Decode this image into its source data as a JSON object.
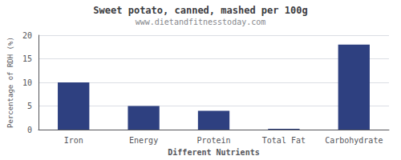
{
  "chart_data": {
    "type": "bar",
    "title": "Sweet potato, canned, mashed per 100g",
    "subtitle": "www.dietandfitnesstoday.com",
    "xlabel": "Different Nutrients",
    "ylabel": "Percentage of RDH (%)",
    "categories": [
      "Iron",
      "Energy",
      "Protein",
      "Total Fat",
      "Carbohydrate"
    ],
    "values": [
      10,
      5,
      4,
      0.2,
      18
    ],
    "color": "#2e4080",
    "ylim": [
      0,
      20
    ],
    "yticks": [
      0,
      5,
      10,
      15,
      20
    ],
    "grid": true
  }
}
